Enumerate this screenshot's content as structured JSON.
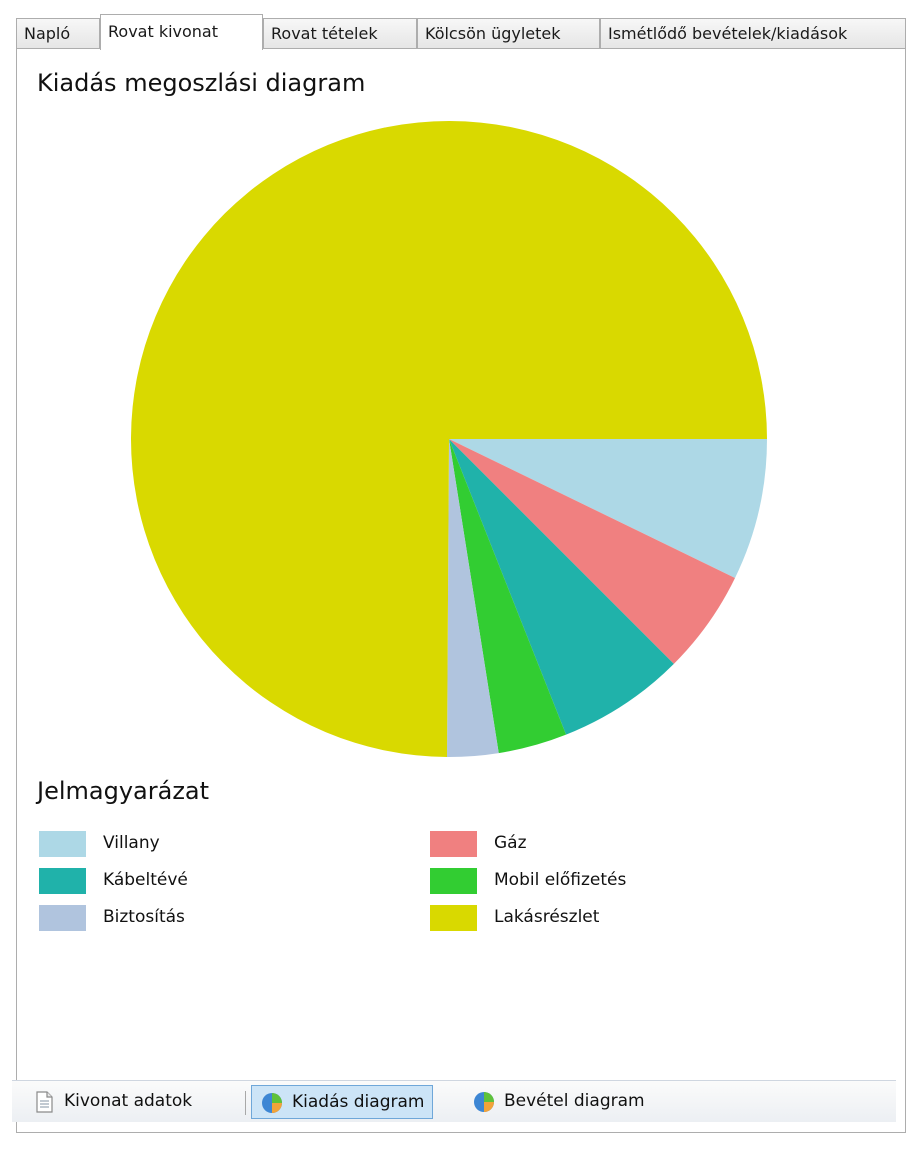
{
  "tabs": [
    {
      "label": "Napló",
      "active": false
    },
    {
      "label": "Rovat kivonat",
      "active": true
    },
    {
      "label": "Rovat tételek",
      "active": false
    },
    {
      "label": "Kölcsön ügyletek",
      "active": false
    },
    {
      "label": "Ismétlődő bevételek/kiadások",
      "active": false
    }
  ],
  "chart_data": {
    "type": "pie",
    "title": "Kiadás megoszlási diagram",
    "legend_title": "Jelmagyarázat",
    "legend_placement": "bottom",
    "categories": [
      "Villany",
      "Gáz",
      "Kábeltévé",
      "Mobil előfizetés",
      "Biztosítás",
      "Lakásrészlet"
    ],
    "values": [
      7.2,
      5.3,
      6.5,
      3.5,
      2.6,
      74.9
    ],
    "colors": [
      "#add8e6",
      "#f08080",
      "#20b2aa",
      "#32cd32",
      "#b0c4de",
      "#d9d900"
    ],
    "start_angle_deg": 0,
    "direction": "clockwise"
  },
  "legend": {
    "items": [
      {
        "label": "Villany",
        "color": "#add8e6"
      },
      {
        "label": "Gáz",
        "color": "#f08080"
      },
      {
        "label": "Kábeltévé",
        "color": "#20b2aa"
      },
      {
        "label": "Mobil előfizetés",
        "color": "#32cd32"
      },
      {
        "label": "Biztosítás",
        "color": "#b0c4de"
      },
      {
        "label": "Lakásrészlet",
        "color": "#d9d900"
      }
    ]
  },
  "bottom_bar": {
    "buttons": [
      {
        "label": "Kivonat adatok",
        "icon": "document-icon",
        "active": false
      },
      {
        "label": "Kiadás diagram",
        "icon": "pie-chart-icon",
        "active": true
      },
      {
        "label": "Bevétel diagram",
        "icon": "pie-chart-icon",
        "active": false
      }
    ]
  }
}
